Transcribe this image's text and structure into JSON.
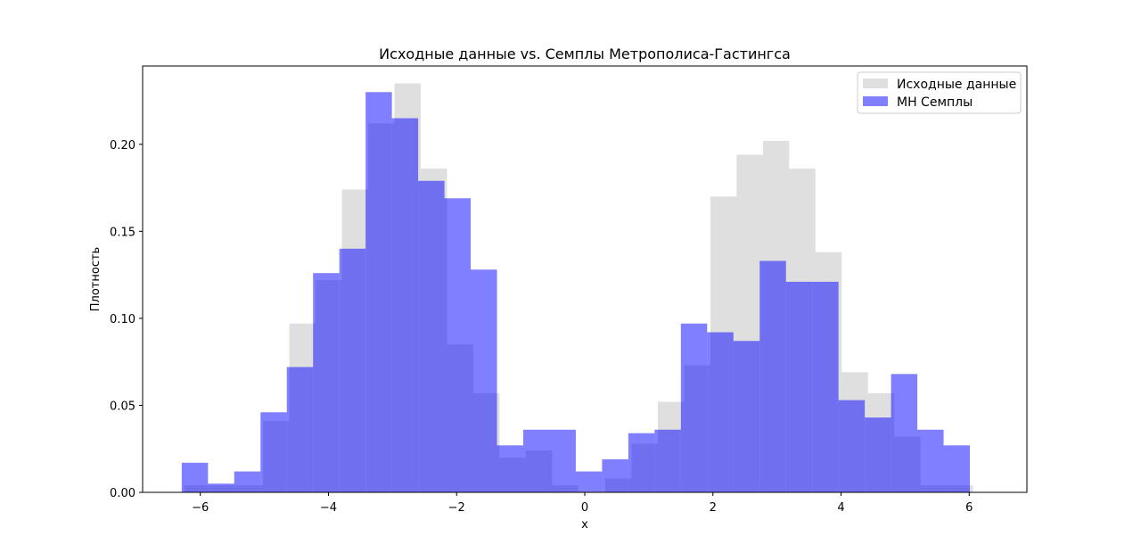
{
  "chart_data": {
    "type": "bar",
    "title": "Исходные данные vs. Семплы Метрополиса-Гастингса",
    "xlabel": "x",
    "ylabel": "Плотность",
    "xlim": [
      -6.9,
      6.9
    ],
    "ylim": [
      0,
      0.245
    ],
    "xticks": [
      -6,
      -4,
      -2,
      0,
      2,
      4,
      6
    ],
    "xtick_labels": [
      "−6",
      "−4",
      "−2",
      "0",
      "2",
      "4",
      "6"
    ],
    "yticks": [
      0.0,
      0.05,
      0.1,
      0.15,
      0.2
    ],
    "ytick_labels": [
      "0.00",
      "0.05",
      "0.10",
      "0.15",
      "0.20"
    ],
    "grid": false,
    "legend_position": "top-right",
    "series": [
      {
        "name": "Исходные данные",
        "color": "#bfbfbf",
        "bins": [
          {
            "x0": -6.25,
            "x1": -5.84,
            "value": 0.004
          },
          {
            "x0": -5.84,
            "x1": -5.43,
            "value": 0.004
          },
          {
            "x0": -5.43,
            "x1": -5.02,
            "value": 0.004
          },
          {
            "x0": -5.02,
            "x1": -4.61,
            "value": 0.041
          },
          {
            "x0": -4.61,
            "x1": -4.2,
            "value": 0.097
          },
          {
            "x0": -4.2,
            "x1": -3.79,
            "value": 0.122
          },
          {
            "x0": -3.79,
            "x1": -3.38,
            "value": 0.174
          },
          {
            "x0": -3.38,
            "x1": -2.97,
            "value": 0.212
          },
          {
            "x0": -2.97,
            "x1": -2.56,
            "value": 0.235
          },
          {
            "x0": -2.56,
            "x1": -2.15,
            "value": 0.186
          },
          {
            "x0": -2.15,
            "x1": -1.74,
            "value": 0.085
          },
          {
            "x0": -1.74,
            "x1": -1.33,
            "value": 0.057
          },
          {
            "x0": -1.33,
            "x1": -0.92,
            "value": 0.02
          },
          {
            "x0": -0.92,
            "x1": -0.51,
            "value": 0.024
          },
          {
            "x0": -0.51,
            "x1": -0.1,
            "value": 0.004
          },
          {
            "x0": 0.32,
            "x1": 0.73,
            "value": 0.008
          },
          {
            "x0": 0.73,
            "x1": 1.14,
            "value": 0.028
          },
          {
            "x0": 1.14,
            "x1": 1.55,
            "value": 0.052
          },
          {
            "x0": 1.55,
            "x1": 1.96,
            "value": 0.073
          },
          {
            "x0": 1.96,
            "x1": 2.37,
            "value": 0.17
          },
          {
            "x0": 2.37,
            "x1": 2.78,
            "value": 0.194
          },
          {
            "x0": 2.78,
            "x1": 3.19,
            "value": 0.202
          },
          {
            "x0": 3.19,
            "x1": 3.6,
            "value": 0.186
          },
          {
            "x0": 3.6,
            "x1": 4.01,
            "value": 0.138
          },
          {
            "x0": 4.01,
            "x1": 4.42,
            "value": 0.069
          },
          {
            "x0": 4.42,
            "x1": 4.83,
            "value": 0.057
          },
          {
            "x0": 4.83,
            "x1": 5.24,
            "value": 0.032
          },
          {
            "x0": 5.24,
            "x1": 5.65,
            "value": 0.004
          },
          {
            "x0": 5.65,
            "x1": 6.06,
            "value": 0.004
          }
        ]
      },
      {
        "name": "MH Семплы",
        "color": "#0000ff",
        "bins": [
          {
            "x0": -6.29,
            "x1": -5.88,
            "value": 0.017
          },
          {
            "x0": -5.88,
            "x1": -5.47,
            "value": 0.005
          },
          {
            "x0": -5.47,
            "x1": -5.06,
            "value": 0.012
          },
          {
            "x0": -5.06,
            "x1": -4.65,
            "value": 0.046
          },
          {
            "x0": -4.65,
            "x1": -4.24,
            "value": 0.072
          },
          {
            "x0": -4.24,
            "x1": -3.83,
            "value": 0.126
          },
          {
            "x0": -3.83,
            "x1": -3.42,
            "value": 0.14
          },
          {
            "x0": -3.42,
            "x1": -3.01,
            "value": 0.23
          },
          {
            "x0": -3.01,
            "x1": -2.6,
            "value": 0.215
          },
          {
            "x0": -2.6,
            "x1": -2.19,
            "value": 0.179
          },
          {
            "x0": -2.19,
            "x1": -1.78,
            "value": 0.169
          },
          {
            "x0": -1.78,
            "x1": -1.37,
            "value": 0.128
          },
          {
            "x0": -1.37,
            "x1": -0.96,
            "value": 0.027
          },
          {
            "x0": -0.96,
            "x1": -0.55,
            "value": 0.036
          },
          {
            "x0": -0.55,
            "x1": -0.14,
            "value": 0.036
          },
          {
            "x0": -0.14,
            "x1": 0.27,
            "value": 0.012
          },
          {
            "x0": 0.27,
            "x1": 0.68,
            "value": 0.019
          },
          {
            "x0": 0.68,
            "x1": 1.09,
            "value": 0.034
          },
          {
            "x0": 1.09,
            "x1": 1.5,
            "value": 0.036
          },
          {
            "x0": 1.5,
            "x1": 1.91,
            "value": 0.097
          },
          {
            "x0": 1.91,
            "x1": 2.32,
            "value": 0.092
          },
          {
            "x0": 2.32,
            "x1": 2.73,
            "value": 0.087
          },
          {
            "x0": 2.73,
            "x1": 3.14,
            "value": 0.133
          },
          {
            "x0": 3.14,
            "x1": 3.55,
            "value": 0.121
          },
          {
            "x0": 3.55,
            "x1": 3.96,
            "value": 0.121
          },
          {
            "x0": 3.96,
            "x1": 4.37,
            "value": 0.053
          },
          {
            "x0": 4.37,
            "x1": 4.78,
            "value": 0.043
          },
          {
            "x0": 4.78,
            "x1": 5.19,
            "value": 0.068
          },
          {
            "x0": 5.19,
            "x1": 5.6,
            "value": 0.036
          },
          {
            "x0": 5.6,
            "x1": 6.01,
            "value": 0.027
          }
        ]
      }
    ]
  }
}
